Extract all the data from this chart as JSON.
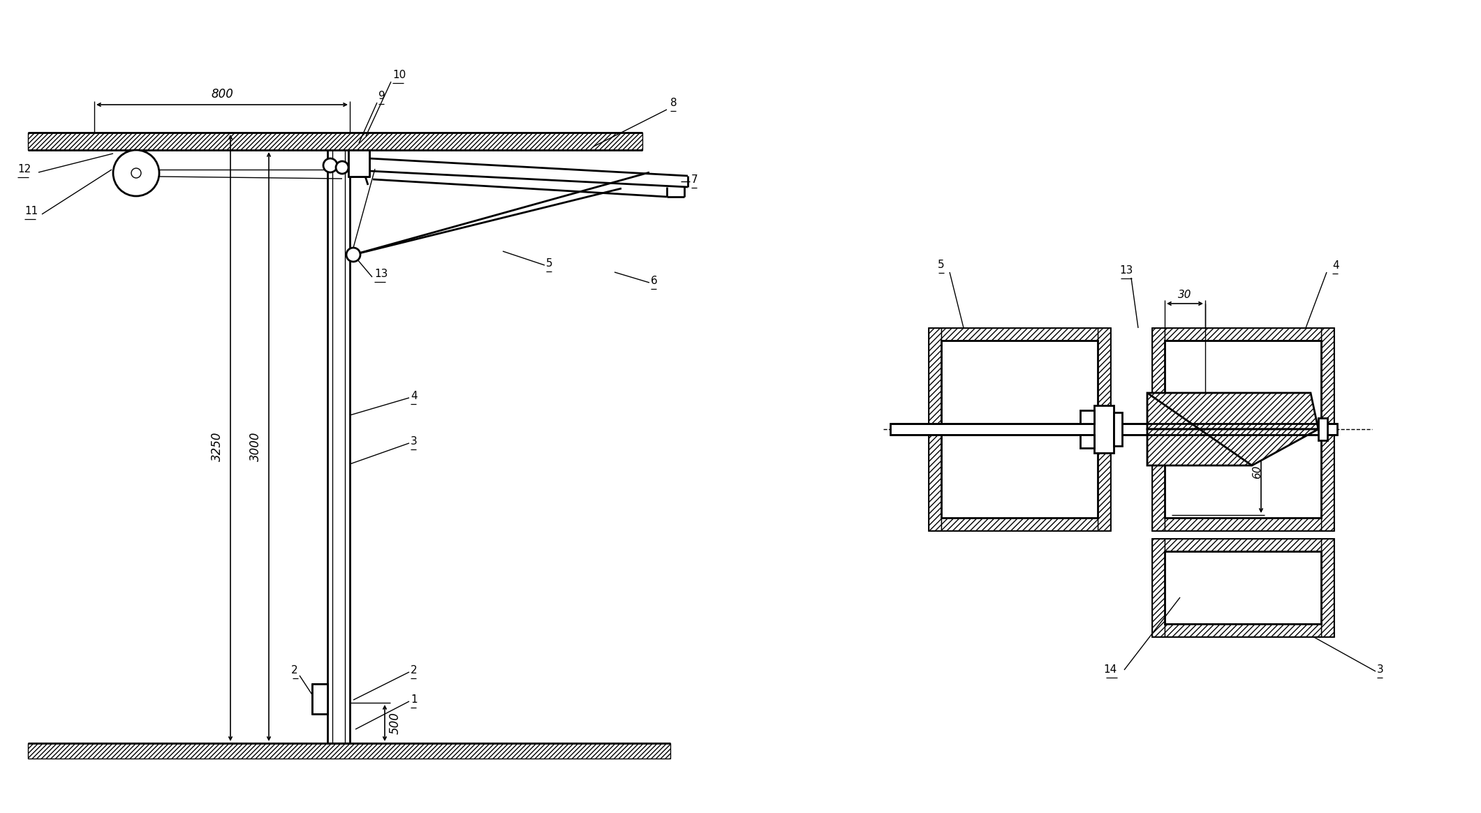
{
  "bg_color": "#ffffff",
  "line_color": "#000000",
  "lw_main": 2.0,
  "lw_thin": 1.0,
  "lw_dim": 1.2,
  "figsize": [
    21.21,
    11.65
  ],
  "dpi": 100
}
